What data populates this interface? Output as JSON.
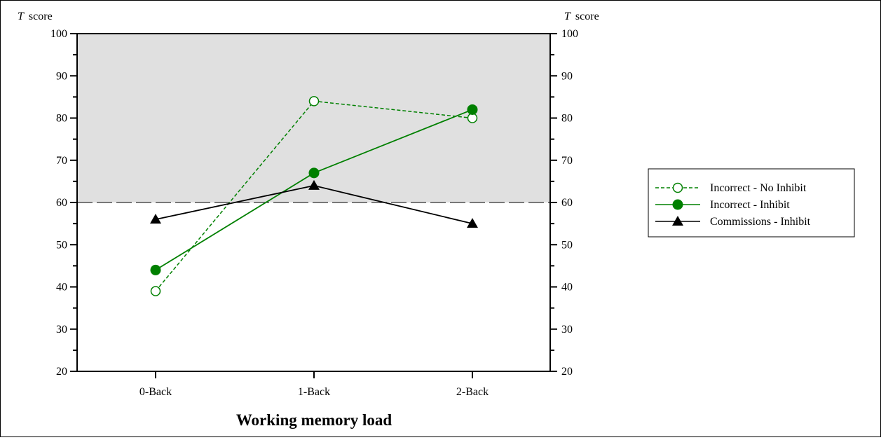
{
  "chart_data": {
    "type": "line",
    "xlabel": "Working memory load",
    "ylabel_left": "score",
    "ylabel_left_italic": "T",
    "ylabel_right": "score",
    "ylabel_right_italic": "T",
    "categories": [
      "0-Back",
      "1-Back",
      "2-Back"
    ],
    "ylim": [
      20,
      100
    ],
    "yticks": [
      20,
      30,
      40,
      50,
      60,
      70,
      80,
      90,
      100
    ],
    "threshold": 60,
    "shaded_region": [
      60,
      100
    ],
    "legend_position": "right",
    "series": [
      {
        "name": "Incorrect - No Inhibit",
        "values": [
          39,
          84,
          80
        ],
        "color": "#008000",
        "line": "dashed",
        "marker": "open-circle"
      },
      {
        "name": "Incorrect - Inhibit",
        "values": [
          44,
          67,
          82
        ],
        "color": "#008000",
        "line": "solid",
        "marker": "filled-circle"
      },
      {
        "name": "Commissions - Inhibit",
        "values": [
          56,
          64,
          55
        ],
        "color": "#000000",
        "line": "solid",
        "marker": "filled-triangle"
      }
    ]
  },
  "colors": {
    "shade": "#e0e0e0",
    "green": "#008000",
    "black": "#000000"
  }
}
